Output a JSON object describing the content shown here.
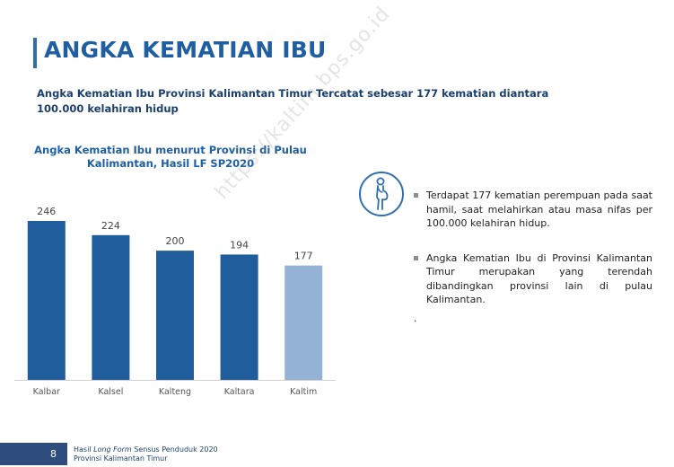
{
  "header": {
    "title": "ANGKA KEMATIAN IBU",
    "subtitle": "Angka Kematian Ibu Provinsi Kalimantan Timur Tercatat sebesar 177 kematian diantara 100.000 kelahiran hidup"
  },
  "watermark": "https://kaltim.bps.go.id",
  "chart_data": {
    "type": "bar",
    "title_line1": "Angka Kematian Ibu menurut Provinsi  di Pulau",
    "title_line2": "Kalimantan, Hasil LF SP2020",
    "categories": [
      "Kalbar",
      "Kalsel",
      "Kalteng",
      "Kaltara",
      "Kaltim"
    ],
    "values": [
      246,
      224,
      200,
      194,
      177
    ],
    "colors": [
      "#1f5d9c",
      "#1f5d9c",
      "#1f5d9c",
      "#1f5d9c",
      "#94b3d7"
    ],
    "ylim": [
      0,
      246
    ],
    "grid": false,
    "legend": "none"
  },
  "info": {
    "icon": "pregnant-woman-icon",
    "bullets": [
      "Terdapat 177 kematian perempuan pada saat hamil, saat melahirkan atau masa nifas per 100.000 kelahiran hidup.",
      "Angka Kematian Ibu di Provinsi Kalimantan Timur merupakan yang terendah dibandingkan provinsi lain di pulau Kalimantan."
    ],
    "trailing": "."
  },
  "footer": {
    "page": "8",
    "line1_prefix": "Hasil ",
    "line1_italic": "Long Form",
    "line1_suffix": " Sensus Penduduk 2020",
    "line2": "Provinsi Kalimantan Timur"
  },
  "colors": {
    "accent": "#1f5fa1",
    "bar_primary": "#1f5d9c",
    "bar_highlight": "#94b3d7",
    "footer": "#2e4d7e"
  }
}
